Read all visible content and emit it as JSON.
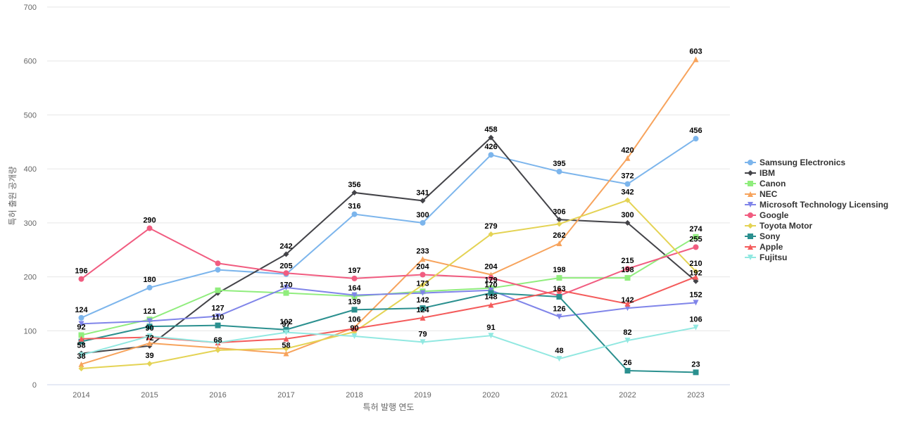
{
  "chart_data": {
    "type": "line",
    "xlabel": "특허 발행 연도",
    "ylabel": "특허 출원 공개량",
    "ylim": [
      0,
      700
    ],
    "y_ticks": [
      0,
      100,
      200,
      300,
      400,
      500,
      600,
      700
    ],
    "grid": true,
    "legend_position": "right",
    "x": [
      "2014",
      "2015",
      "2016",
      "2017",
      "2018",
      "2019",
      "2020",
      "2021",
      "2022",
      "2023"
    ],
    "series": [
      {
        "name": "Samsung Electronics",
        "color": "#7cb5ec",
        "marker": "circle",
        "values": [
          124,
          180,
          213,
          205,
          316,
          300,
          426,
          395,
          372,
          456
        ],
        "labels": [
          true,
          true,
          false,
          true,
          true,
          true,
          true,
          true,
          true,
          true
        ]
      },
      {
        "name": "IBM",
        "color": "#434348",
        "marker": "diamond",
        "values": [
          58,
          72,
          170,
          242,
          356,
          341,
          458,
          306,
          300,
          192
        ],
        "labels": [
          true,
          true,
          false,
          true,
          true,
          true,
          true,
          true,
          true,
          true
        ]
      },
      {
        "name": "Canon",
        "color": "#90ed7d",
        "marker": "square",
        "values": [
          92,
          121,
          175,
          170,
          164,
          173,
          179,
          198,
          198,
          274
        ],
        "labels": [
          true,
          true,
          false,
          true,
          true,
          true,
          true,
          true,
          true,
          true
        ]
      },
      {
        "name": "NEC",
        "color": "#f7a35c",
        "marker": "triangle",
        "values": [
          38,
          77,
          68,
          58,
          106,
          233,
          204,
          262,
          420,
          603
        ],
        "labels": [
          true,
          false,
          true,
          true,
          true,
          true,
          true,
          true,
          true,
          true
        ]
      },
      {
        "name": "Microsoft Technology Licensing",
        "color": "#8085e9",
        "marker": "triangle-down",
        "values": [
          113,
          118,
          127,
          180,
          166,
          170,
          175,
          126,
          142,
          152
        ],
        "labels": [
          false,
          false,
          true,
          false,
          false,
          false,
          false,
          true,
          true,
          true
        ]
      },
      {
        "name": "Google",
        "color": "#f15c80",
        "marker": "circle",
        "values": [
          196,
          290,
          225,
          207,
          197,
          204,
          198,
          165,
          215,
          255
        ],
        "labels": [
          true,
          true,
          false,
          false,
          true,
          true,
          false,
          false,
          true,
          true
        ]
      },
      {
        "name": "Toyota Motor",
        "color": "#e4d354",
        "marker": "diamond",
        "values": [
          30,
          39,
          64,
          67,
          98,
          185,
          279,
          298,
          342,
          210
        ],
        "labels": [
          false,
          true,
          false,
          false,
          false,
          false,
          true,
          false,
          true,
          true
        ]
      },
      {
        "name": "Sony",
        "color": "#2b908f",
        "marker": "square",
        "values": [
          80,
          108,
          110,
          102,
          139,
          142,
          170,
          163,
          26,
          23
        ],
        "labels": [
          false,
          false,
          true,
          true,
          true,
          true,
          true,
          true,
          true,
          true
        ]
      },
      {
        "name": "Apple",
        "color": "#f45b5b",
        "marker": "triangle",
        "values": [
          85,
          88,
          78,
          85,
          104,
          124,
          148,
          175,
          150,
          200
        ],
        "labels": [
          false,
          false,
          false,
          false,
          false,
          true,
          true,
          false,
          false,
          false
        ]
      },
      {
        "name": "Fujitsu",
        "color": "#91e8e1",
        "marker": "triangle-down",
        "values": [
          55,
          90,
          78,
          97,
          90,
          79,
          91,
          48,
          82,
          106
        ],
        "labels": [
          false,
          true,
          false,
          true,
          true,
          true,
          true,
          true,
          true,
          true
        ]
      }
    ]
  }
}
